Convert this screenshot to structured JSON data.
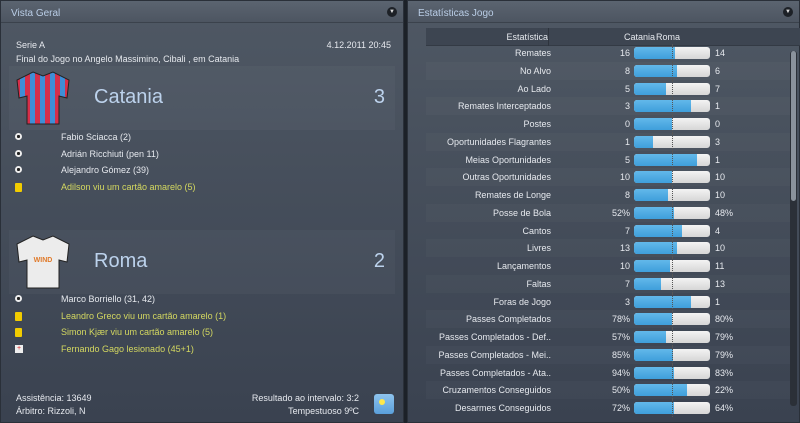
{
  "overview": {
    "title": "Vista Geral",
    "competition": "Serie A",
    "datetime": "4.12.2011 20:45",
    "venue_line": "Final do Jogo no Angelo Massimino, Cibali , em Catania",
    "home": {
      "name": "Catania",
      "score": "3",
      "shirt_colors": [
        "#d62f4a",
        "#3f8ed6"
      ],
      "events": [
        {
          "type": "goal",
          "icon": "ball-icon",
          "text": "Fabio Sciacca (2)"
        },
        {
          "type": "goal",
          "icon": "ball-icon",
          "text": "Adrián Ricchiuti (pen 11)"
        },
        {
          "type": "goal",
          "icon": "ball-icon",
          "text": "Alejandro Gómez (39)"
        },
        {
          "type": "yellow",
          "icon": "yellow-card-icon",
          "text": "Adilson viu um cartão amarelo (5)"
        }
      ]
    },
    "away": {
      "name": "Roma",
      "score": "2",
      "shirt_sponsor": "WIND",
      "events": [
        {
          "type": "goal",
          "icon": "ball-icon",
          "text": "Marco Borriello (31, 42)"
        },
        {
          "type": "yellow",
          "icon": "yellow-card-icon",
          "text": "Leandro Greco viu um cartão amarelo (1)"
        },
        {
          "type": "yellow",
          "icon": "yellow-card-icon",
          "text": "Simon Kjær viu um cartão amarelo (5)"
        },
        {
          "type": "injury",
          "icon": "injury-icon",
          "text": "Fernando Gago lesionado (45+1)"
        }
      ]
    },
    "attendance": "Assistência: 13649",
    "referee": "Árbitro: Rizzoli, N",
    "halftime": "Resultado ao intervalo: 3:2",
    "weather": "Tempestuoso 9ºC",
    "weather_icon": "sun-icon"
  },
  "stats": {
    "title": "Estatísticas Jogo",
    "headers": {
      "stat": "Estatística",
      "home": "Catania",
      "away": "Roma"
    },
    "colors": {
      "home": "#4aa8e0",
      "away": "#e8e8e8"
    },
    "rows": [
      {
        "label": "Remates",
        "home": "16",
        "away": "14"
      },
      {
        "label": "No Alvo",
        "home": "8",
        "away": "6"
      },
      {
        "label": "Ao Lado",
        "home": "5",
        "away": "7"
      },
      {
        "label": "Remates Interceptados",
        "home": "3",
        "away": "1"
      },
      {
        "label": "Postes",
        "home": "0",
        "away": "0"
      },
      {
        "label": "Oportunidades Flagrantes",
        "home": "1",
        "away": "3"
      },
      {
        "label": "Meias Oportunidades",
        "home": "5",
        "away": "1"
      },
      {
        "label": "Outras Oportunidades",
        "home": "10",
        "away": "10"
      },
      {
        "label": "Remates de Longe",
        "home": "8",
        "away": "10"
      },
      {
        "label": "Posse de Bola",
        "home": "52%",
        "away": "48%"
      },
      {
        "label": "Cantos",
        "home": "7",
        "away": "4"
      },
      {
        "label": "Livres",
        "home": "13",
        "away": "10"
      },
      {
        "label": "Lançamentos",
        "home": "10",
        "away": "11"
      },
      {
        "label": "Faltas",
        "home": "7",
        "away": "13"
      },
      {
        "label": "Foras de Jogo",
        "home": "3",
        "away": "1"
      },
      {
        "label": "Passes Completados",
        "home": "78%",
        "away": "80%"
      },
      {
        "label": "Passes Completados - Def..",
        "home": "57%",
        "away": "79%"
      },
      {
        "label": "Passes Completados - Mei..",
        "home": "85%",
        "away": "79%"
      },
      {
        "label": "Passes Completados - Ata..",
        "home": "94%",
        "away": "83%"
      },
      {
        "label": "Cruzamentos Conseguidos",
        "home": "50%",
        "away": "22%"
      },
      {
        "label": "Desarmes Conseguidos",
        "home": "72%",
        "away": "64%"
      }
    ]
  }
}
